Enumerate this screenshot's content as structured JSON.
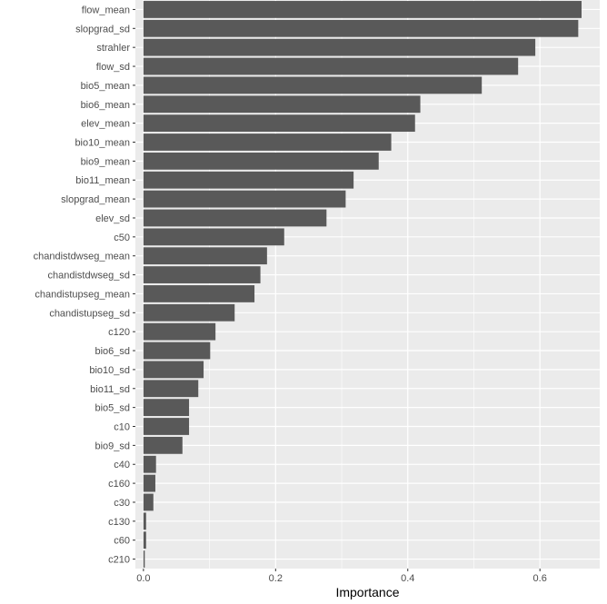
{
  "chart_data": {
    "type": "bar",
    "orientation": "horizontal",
    "xlabel": "Importance",
    "ylabel": "",
    "xlim": [
      -0.0122,
      0.6905
    ],
    "x_ticks": [
      0.0,
      0.2,
      0.4,
      0.6
    ],
    "x_tick_labels": [
      "0.0",
      "0.2",
      "0.4",
      "0.6"
    ],
    "grid": true,
    "panel_background": "#ebebeb",
    "bar_color": "#595959",
    "categories": [
      "flow_mean",
      "slopgrad_sd",
      "strahler",
      "flow_sd",
      "bio5_mean",
      "bio6_mean",
      "elev_mean",
      "bio10_mean",
      "bio9_mean",
      "bio11_mean",
      "slopgrad_mean",
      "elev_sd",
      "c50",
      "chandistdwseg_mean",
      "chandistdwseg_sd",
      "chandistupseg_mean",
      "chandistupseg_sd",
      "c120",
      "bio6_sd",
      "bio10_sd",
      "bio11_sd",
      "bio5_sd",
      "c10",
      "bio9_sd",
      "c40",
      "c160",
      "c30",
      "c130",
      "c60",
      "c210"
    ],
    "values": [
      0.663,
      0.658,
      0.593,
      0.567,
      0.512,
      0.419,
      0.411,
      0.375,
      0.356,
      0.318,
      0.306,
      0.277,
      0.213,
      0.187,
      0.177,
      0.168,
      0.138,
      0.109,
      0.101,
      0.091,
      0.083,
      0.069,
      0.069,
      0.059,
      0.019,
      0.018,
      0.015,
      0.004,
      0.004,
      0.002
    ]
  }
}
